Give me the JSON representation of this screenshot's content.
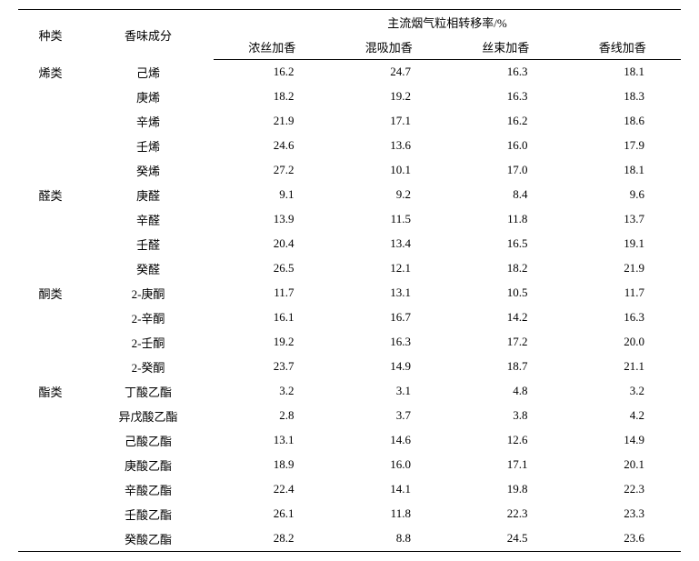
{
  "header": {
    "col_category": "种类",
    "col_component": "香味成分",
    "col_group": "主流烟气粒相转移率/%",
    "sub1": "浓丝加香",
    "sub2": "混吸加香",
    "sub3": "丝束加香",
    "sub4": "香线加香"
  },
  "rows": [
    {
      "cat": "烯类",
      "comp": "己烯",
      "v1": "16.2",
      "v2": "24.7",
      "v3": "16.3",
      "v4": "18.1"
    },
    {
      "cat": "",
      "comp": "庚烯",
      "v1": "18.2",
      "v2": "19.2",
      "v3": "16.3",
      "v4": "18.3"
    },
    {
      "cat": "",
      "comp": "辛烯",
      "v1": "21.9",
      "v2": "17.1",
      "v3": "16.2",
      "v4": "18.6"
    },
    {
      "cat": "",
      "comp": "壬烯",
      "v1": "24.6",
      "v2": "13.6",
      "v3": "16.0",
      "v4": "17.9"
    },
    {
      "cat": "",
      "comp": "癸烯",
      "v1": "27.2",
      "v2": "10.1",
      "v3": "17.0",
      "v4": "18.1"
    },
    {
      "cat": "醛类",
      "comp": "庚醛",
      "v1": "9.1",
      "v2": "9.2",
      "v3": "8.4",
      "v4": "9.6"
    },
    {
      "cat": "",
      "comp": "辛醛",
      "v1": "13.9",
      "v2": "11.5",
      "v3": "11.8",
      "v4": "13.7"
    },
    {
      "cat": "",
      "comp": "壬醛",
      "v1": "20.4",
      "v2": "13.4",
      "v3": "16.5",
      "v4": "19.1"
    },
    {
      "cat": "",
      "comp": "癸醛",
      "v1": "26.5",
      "v2": "12.1",
      "v3": "18.2",
      "v4": "21.9"
    },
    {
      "cat": "酮类",
      "comp": "2-庚酮",
      "v1": "11.7",
      "v2": "13.1",
      "v3": "10.5",
      "v4": "11.7"
    },
    {
      "cat": "",
      "comp": "2-辛酮",
      "v1": "16.1",
      "v2": "16.7",
      "v3": "14.2",
      "v4": "16.3"
    },
    {
      "cat": "",
      "comp": "2-壬酮",
      "v1": "19.2",
      "v2": "16.3",
      "v3": "17.2",
      "v4": "20.0"
    },
    {
      "cat": "",
      "comp": "2-癸酮",
      "v1": "23.7",
      "v2": "14.9",
      "v3": "18.7",
      "v4": "21.1"
    },
    {
      "cat": "酯类",
      "comp": "丁酸乙酯",
      "v1": "3.2",
      "v2": "3.1",
      "v3": "4.8",
      "v4": "3.2"
    },
    {
      "cat": "",
      "comp": "异戊酸乙酯",
      "v1": "2.8",
      "v2": "3.7",
      "v3": "3.8",
      "v4": "4.2"
    },
    {
      "cat": "",
      "comp": "己酸乙酯",
      "v1": "13.1",
      "v2": "14.6",
      "v3": "12.6",
      "v4": "14.9"
    },
    {
      "cat": "",
      "comp": "庚酸乙酯",
      "v1": "18.9",
      "v2": "16.0",
      "v3": "17.1",
      "v4": "20.1"
    },
    {
      "cat": "",
      "comp": "辛酸乙酯",
      "v1": "22.4",
      "v2": "14.1",
      "v3": "19.8",
      "v4": "22.3"
    },
    {
      "cat": "",
      "comp": "壬酸乙酯",
      "v1": "26.1",
      "v2": "11.8",
      "v3": "22.3",
      "v4": "23.3"
    },
    {
      "cat": "",
      "comp": "癸酸乙酯",
      "v1": "28.2",
      "v2": "8.8",
      "v3": "24.5",
      "v4": "23.6"
    }
  ]
}
